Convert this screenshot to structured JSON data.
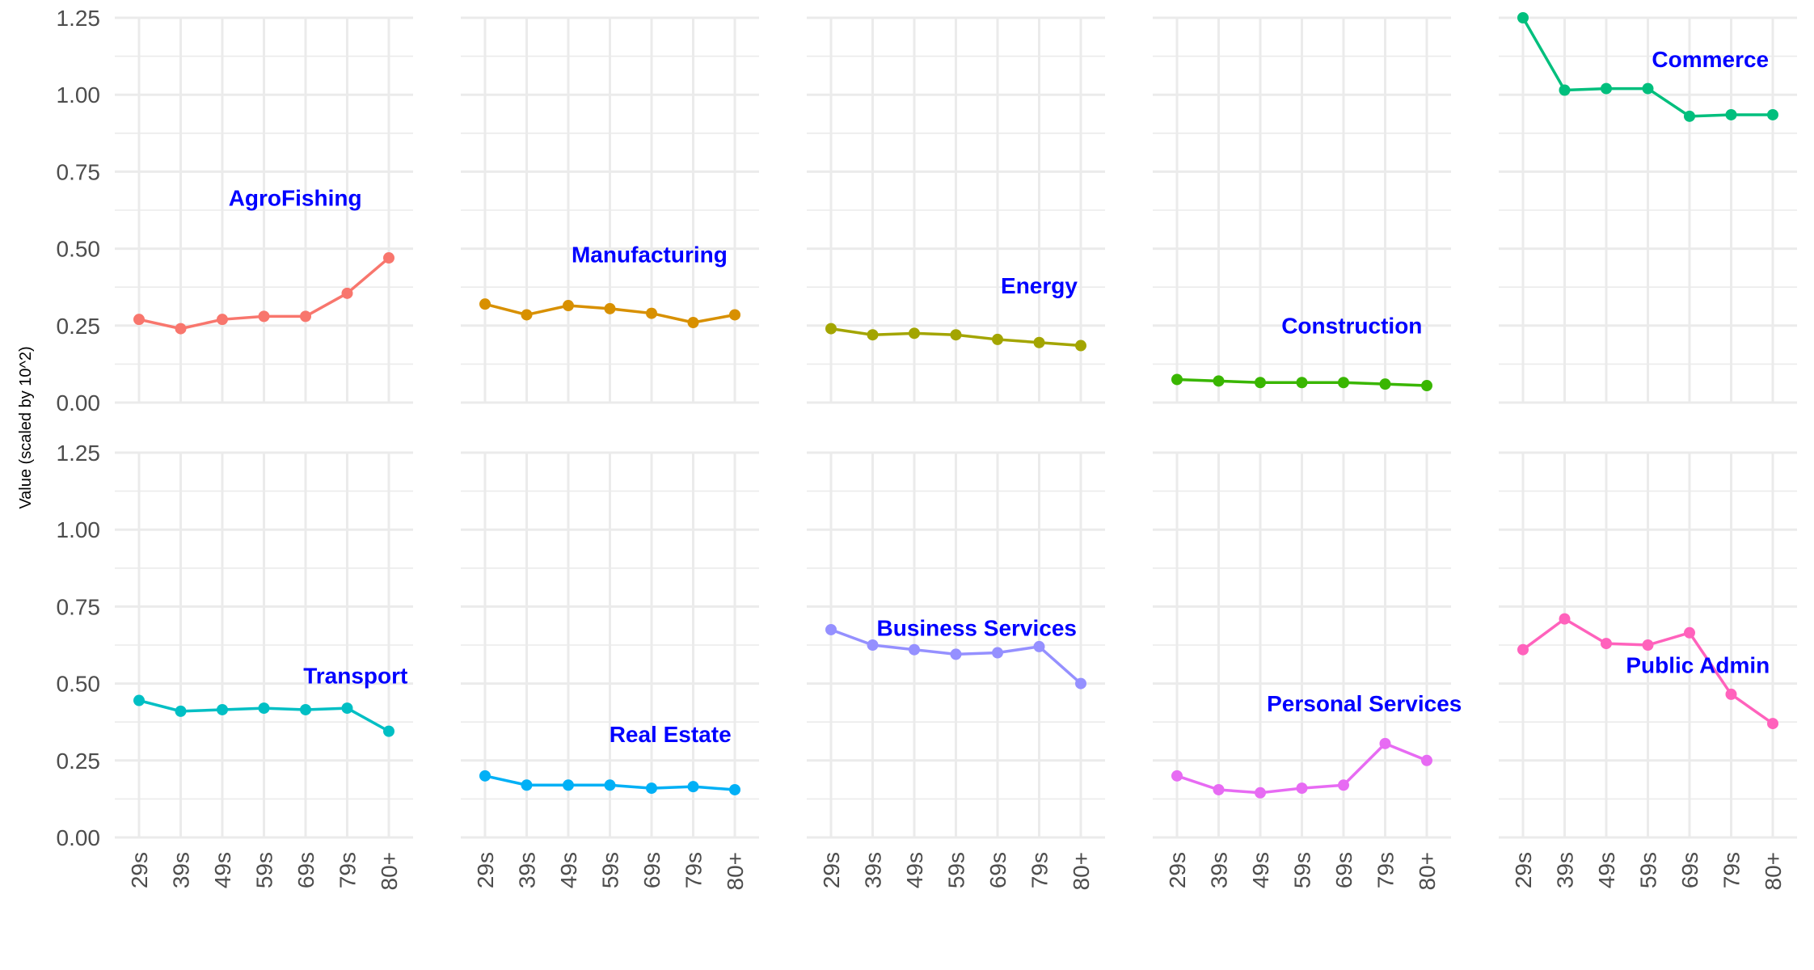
{
  "chart_data": {
    "type": "line",
    "layout": "facet-grid",
    "ylabel": "Value (scaled by 10^2)",
    "xlabel": "",
    "ylim": [
      0,
      1.25
    ],
    "y_ticks": [
      0,
      0.25,
      0.5,
      0.75,
      1.0,
      1.25
    ],
    "y_tick_labels": [
      "0.00",
      "0.25",
      "0.50",
      "0.75",
      "1.00",
      "1.25"
    ],
    "categories": [
      "29s",
      "39s",
      "49s",
      "59s",
      "69s",
      "79s",
      "80+"
    ],
    "grid": true,
    "legend": "none",
    "label_color": "#0000ff",
    "series": [
      {
        "name": "AgroFishing",
        "color": "#f8766d",
        "values": [
          0.27,
          0.24,
          0.27,
          0.28,
          0.28,
          0.355,
          0.47
        ]
      },
      {
        "name": "Manufacturing",
        "color": "#d89000",
        "values": [
          0.32,
          0.285,
          0.315,
          0.305,
          0.29,
          0.26,
          0.285
        ]
      },
      {
        "name": "Energy",
        "color": "#a3a500",
        "values": [
          0.24,
          0.22,
          0.225,
          0.22,
          0.205,
          0.195,
          0.185
        ]
      },
      {
        "name": "Construction",
        "color": "#39b600",
        "values": [
          0.075,
          0.07,
          0.065,
          0.065,
          0.065,
          0.06,
          0.055
        ]
      },
      {
        "name": "Commerce",
        "color": "#00bf7d",
        "values": [
          1.25,
          1.015,
          1.02,
          1.02,
          0.93,
          0.935,
          0.935
        ]
      },
      {
        "name": "Transport",
        "color": "#00bfc4",
        "values": [
          0.445,
          0.41,
          0.415,
          0.42,
          0.415,
          0.42,
          0.345
        ]
      },
      {
        "name": "Real Estate",
        "color": "#00b0f6",
        "values": [
          0.2,
          0.17,
          0.17,
          0.17,
          0.16,
          0.165,
          0.155
        ]
      },
      {
        "name": "Business Services",
        "color": "#9590ff",
        "values": [
          0.675,
          0.625,
          0.61,
          0.595,
          0.6,
          0.62,
          0.5
        ]
      },
      {
        "name": "Personal Services",
        "color": "#e76bf3",
        "values": [
          0.2,
          0.155,
          0.145,
          0.16,
          0.17,
          0.305,
          0.25
        ]
      },
      {
        "name": "Public Admin",
        "color": "#ff62bc",
        "values": [
          0.61,
          0.71,
          0.63,
          0.625,
          0.665,
          0.465,
          0.37
        ]
      }
    ]
  }
}
